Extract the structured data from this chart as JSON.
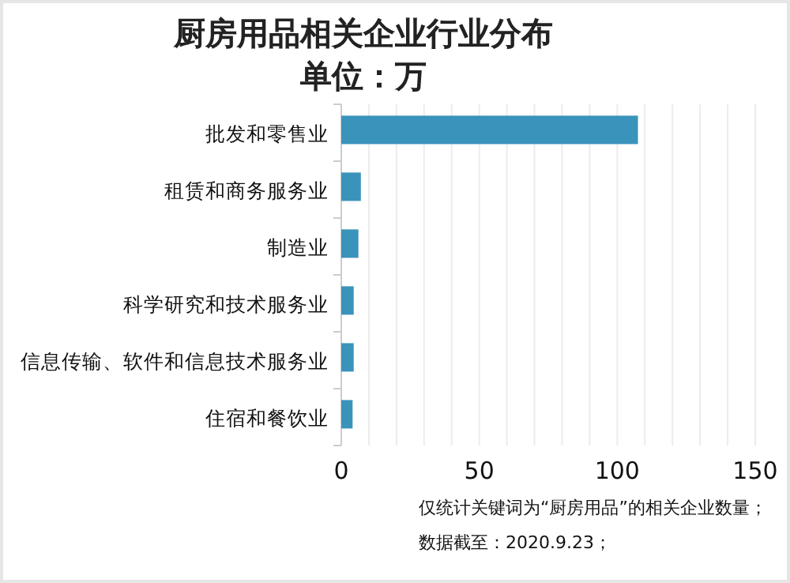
{
  "chart_data": {
    "type": "bar",
    "orientation": "horizontal",
    "title": "厨房用品相关企业行业分布",
    "subtitle": "单位：万",
    "categories": [
      "批发和零售业",
      "租赁和商务服务业",
      "制造业",
      "科学研究和技术服务业",
      "信息传输、软件和信息技术服务业",
      "住宿和餐饮业"
    ],
    "values": [
      107.5,
      7.1,
      6.2,
      4.5,
      4.5,
      4.1
    ],
    "color": "#3a93bb",
    "xlim": [
      0,
      150
    ],
    "xticks": [
      0,
      {
        "value": 10,
        "label": null
      },
      {
        "value": 20,
        "label": null
      },
      {
        "value": 30,
        "label": null
      },
      {
        "value": 40,
        "label": null
      },
      50,
      {
        "value": 60,
        "label": null
      },
      {
        "value": 70,
        "label": null
      },
      {
        "value": 80,
        "label": null
      },
      {
        "value": 90,
        "label": null
      },
      100,
      {
        "value": 110,
        "label": null
      },
      {
        "value": 120,
        "label": null
      },
      {
        "value": 130,
        "label": null
      },
      {
        "value": 140,
        "label": null
      },
      150
    ],
    "grid": "x",
    "annotations": [
      "仅统计关键词为“厨房用品”的相关企业数量；",
      "数据截至：2020.9.23；"
    ]
  }
}
